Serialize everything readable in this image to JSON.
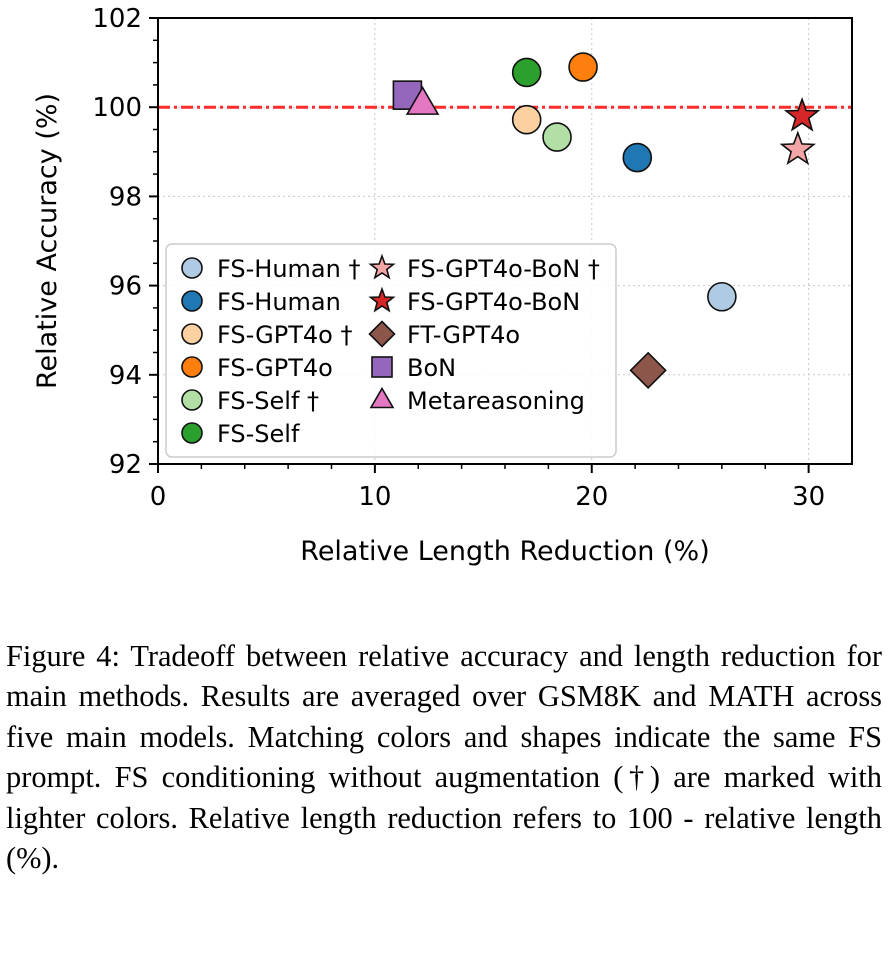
{
  "chart_data": {
    "type": "scatter",
    "xlabel": "Relative Length Reduction (%)",
    "ylabel": "Relative Accuracy (%)",
    "xlim": [
      0,
      32
    ],
    "ylim": [
      92,
      102
    ],
    "x_ticks": [
      "0",
      "10",
      "20",
      "30"
    ],
    "y_ticks": [
      "92",
      "94",
      "96",
      "98",
      "100",
      "102"
    ],
    "grid": true,
    "legend_position": "lower-left",
    "reference_line": {
      "y": 100,
      "color": "#ff2a2a",
      "style": "dashed"
    },
    "series": [
      {
        "name": "FS-Human †",
        "marker": "circle",
        "color": "#aecbe3",
        "x": 26.0,
        "y": 95.75
      },
      {
        "name": "FS-Human",
        "marker": "circle",
        "color": "#1f77b4",
        "x": 22.1,
        "y": 98.87
      },
      {
        "name": "FS-GPT4o †",
        "marker": "circle",
        "color": "#fdd0a2",
        "x": 17.0,
        "y": 99.72
      },
      {
        "name": "FS-GPT4o",
        "marker": "circle",
        "color": "#ff7f0e",
        "x": 19.6,
        "y": 100.9
      },
      {
        "name": "FS-Self †",
        "marker": "circle",
        "color": "#b2dfa5",
        "x": 18.4,
        "y": 99.33
      },
      {
        "name": "FS-Self",
        "marker": "circle",
        "color": "#2ca02c",
        "x": 17.0,
        "y": 100.78
      },
      {
        "name": "FS-GPT4o-BoN †",
        "marker": "star",
        "color": "#f4a6a6",
        "x": 29.5,
        "y": 99.05
      },
      {
        "name": "FS-GPT4o-BoN",
        "marker": "star",
        "color": "#d62728",
        "x": 29.7,
        "y": 99.8
      },
      {
        "name": "FT-GPT4o",
        "marker": "diamond",
        "color": "#8c564b",
        "x": 22.6,
        "y": 94.1
      },
      {
        "name": "BoN",
        "marker": "square",
        "color": "#9467bd",
        "x": 11.5,
        "y": 100.27
      },
      {
        "name": "Metareasoning",
        "marker": "triangle",
        "color": "#e377c2",
        "x": 12.2,
        "y": 100.08
      }
    ]
  },
  "caption": "Figure 4: Tradeoff between relative accuracy and length reduction for main methods. Results are averaged over GSM8K and MATH across five main models. Matching colors and shapes indicate the same FS prompt. FS conditioning without augmentation (†) are marked with lighter colors. Relative length reduction refers to 100 - relative length (%)."
}
